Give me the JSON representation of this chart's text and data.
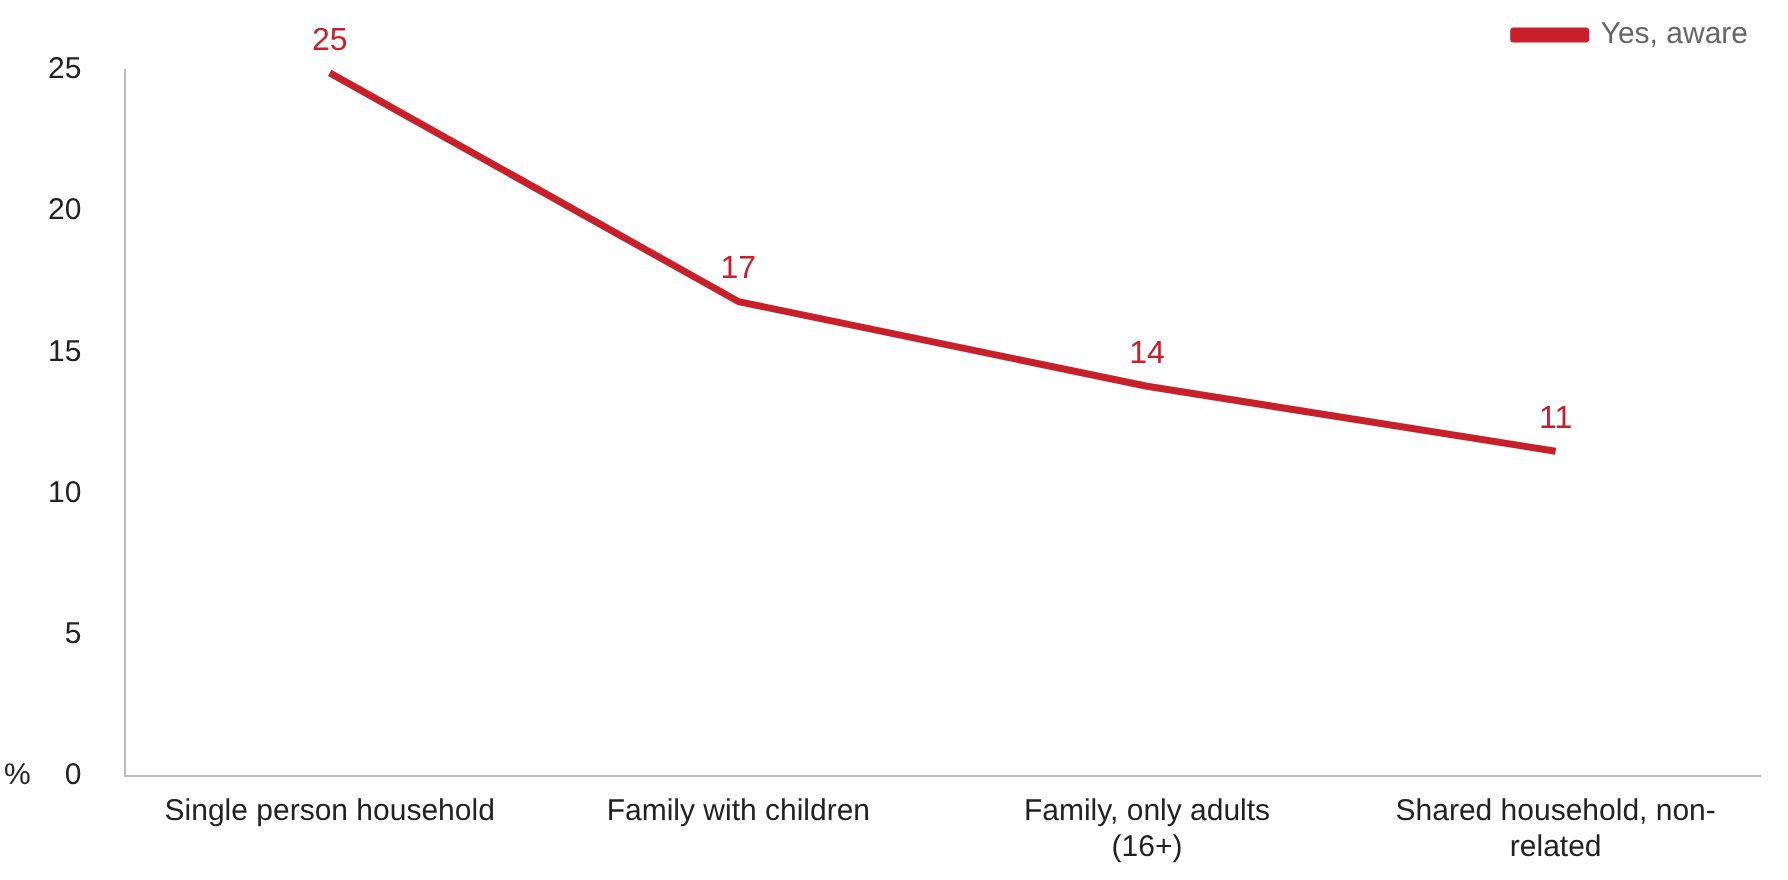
{
  "chart_data": {
    "type": "line",
    "ylabel": "%",
    "categories": [
      "Single person household",
      "Family with children",
      "Family, only adults (16+)",
      "Shared household, non-related"
    ],
    "series": [
      {
        "name": "Yes, aware",
        "color": "#c8202a",
        "values": [
          24.9,
          16.8,
          13.8,
          11.5
        ],
        "value_labels": [
          "25",
          "17",
          "14",
          "11"
        ]
      }
    ],
    "ylim": [
      0,
      25
    ],
    "yticks": [
      0,
      5,
      10,
      15,
      20,
      25
    ],
    "grid": false,
    "legend": "top right",
    "marker": "none",
    "line_style": "solid"
  }
}
